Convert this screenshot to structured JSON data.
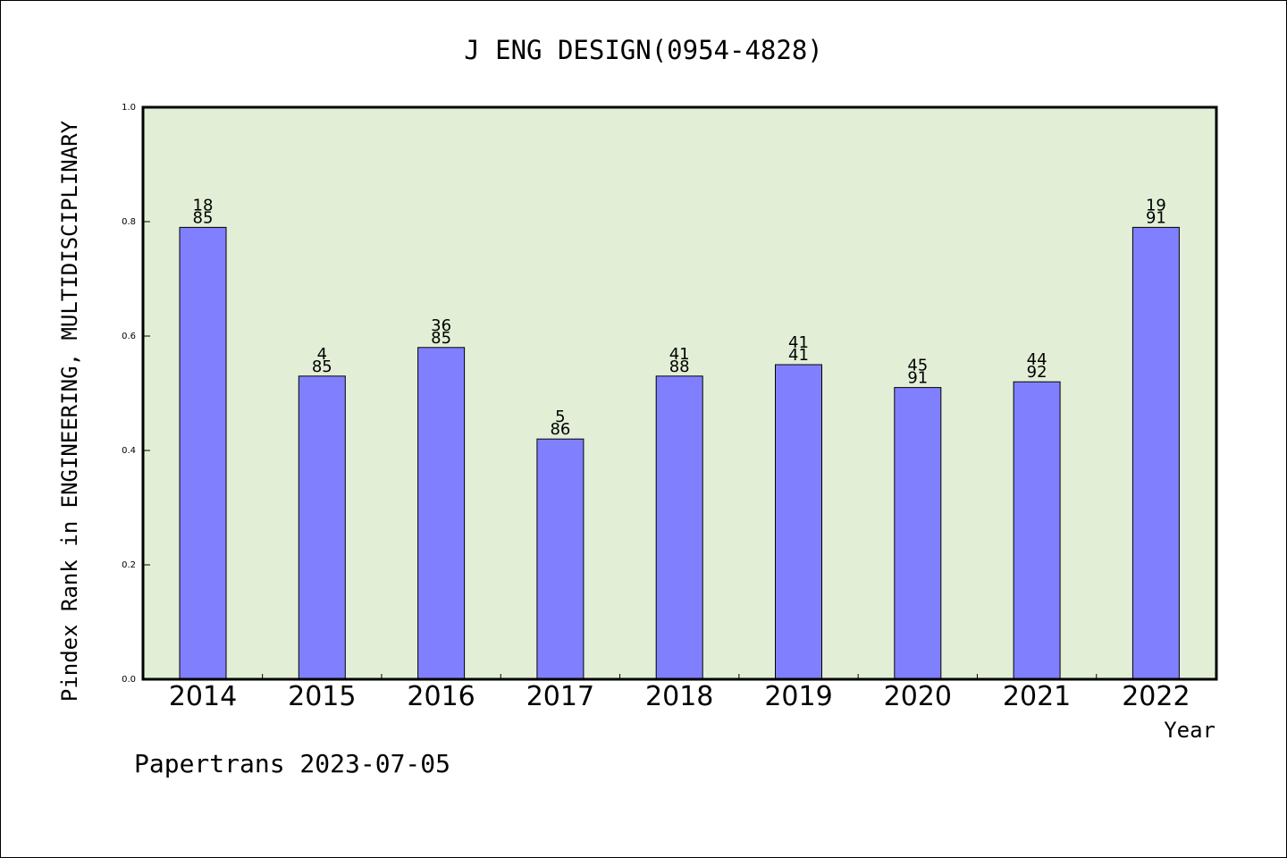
{
  "chart_data": {
    "type": "bar",
    "title": "J ENG DESIGN(0954-4828)",
    "ylabel": "Pindex Rank in ENGINEERING, MULTIDISCIPLINARY",
    "xlabel": "Year",
    "footer": "Papertrans 2023-07-05",
    "categories": [
      "2014",
      "2015",
      "2016",
      "2017",
      "2018",
      "2019",
      "2020",
      "2021",
      "2022"
    ],
    "values": [
      0.79,
      0.53,
      0.58,
      0.42,
      0.53,
      0.55,
      0.51,
      0.52,
      0.79
    ],
    "bar_labels_top": [
      "18",
      "4",
      "36",
      "5",
      "41",
      "41",
      "45",
      "44",
      "19"
    ],
    "bar_labels_bottom": [
      "85",
      "85",
      "85",
      "86",
      "88",
      "41",
      "91",
      "92",
      "91"
    ],
    "ylim": [
      0,
      1.0
    ],
    "yticks": [
      "0.0",
      "0.2",
      "0.4",
      "0.6",
      "0.8",
      "1.0"
    ],
    "grid": false,
    "colors": {
      "bar": "#8080ff",
      "plot_background": "#e2efd6",
      "axis": "#000000"
    }
  }
}
